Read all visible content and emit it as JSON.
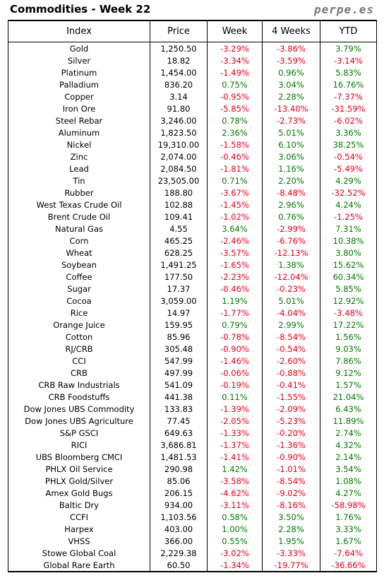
{
  "header": {
    "title": "Commodities - Week 22",
    "brand": "perpe.es"
  },
  "columns": [
    "Index",
    "Price",
    "Week",
    "4 Weeks",
    "YTD"
  ],
  "colors": {
    "positive": "#007a00",
    "negative": "#e0001b"
  },
  "rows": [
    [
      "Gold",
      "1,250.50",
      "-3.29%",
      "-3.86%",
      "3.79%"
    ],
    [
      "Silver",
      "18.82",
      "-3.34%",
      "-3.59%",
      "-3.14%"
    ],
    [
      "Platinum",
      "1,454.00",
      "-1.49%",
      "0.96%",
      "5.83%"
    ],
    [
      "Palladium",
      "836.20",
      "0.75%",
      "3.04%",
      "16.76%"
    ],
    [
      "Copper",
      "3.14",
      "-0.95%",
      "2.28%",
      "-7.37%"
    ],
    [
      "Iron Ore",
      "91.80",
      "-5.85%",
      "-13.40%",
      "-31.59%"
    ],
    [
      "Steel Rebar",
      "3,246.00",
      "0.78%",
      "-2.73%",
      "-6.02%"
    ],
    [
      "Aluminum",
      "1,823.50",
      "2.36%",
      "5.01%",
      "3.36%"
    ],
    [
      "Nickel",
      "19,310.00",
      "-1.58%",
      "6.10%",
      "38.25%"
    ],
    [
      "Zinc",
      "2,074.00",
      "-0.46%",
      "3.06%",
      "-0.54%"
    ],
    [
      "Lead",
      "2,084.50",
      "-1.81%",
      "1.16%",
      "-5.49%"
    ],
    [
      "Tin",
      "23,505.00",
      "0.71%",
      "2.20%",
      "4.29%"
    ],
    [
      "Rubber",
      "188.80",
      "-3.67%",
      "-8.48%",
      "-32.52%"
    ],
    [
      "West Texas Crude Oil",
      "102.88",
      "-1.45%",
      "2.96%",
      "4.24%"
    ],
    [
      "Brent Crude Oil",
      "109.41",
      "-1.02%",
      "0.76%",
      "-1.25%"
    ],
    [
      "Natural Gas",
      "4.55",
      "3.64%",
      "-2.99%",
      "7.31%"
    ],
    [
      "Corn",
      "465.25",
      "-2.46%",
      "-6.76%",
      "10.38%"
    ],
    [
      "Wheat",
      "628.25",
      "-3.57%",
      "-12.13%",
      "3.80%"
    ],
    [
      "Soybean",
      "1,491.25",
      "-1.65%",
      "1.38%",
      "15.62%"
    ],
    [
      "Coffee",
      "177.50",
      "-2.23%",
      "-12.04%",
      "60.34%"
    ],
    [
      "Sugar",
      "17.37",
      "-0.46%",
      "-0.23%",
      "5.85%"
    ],
    [
      "Cocoa",
      "3,059.00",
      "1.19%",
      "5.01%",
      "12.92%"
    ],
    [
      "Rice",
      "14.97",
      "-1.77%",
      "-4.04%",
      "-3.48%"
    ],
    [
      "Orange Juice",
      "159.95",
      "0.79%",
      "2.99%",
      "17.22%"
    ],
    [
      "Cotton",
      "85.96",
      "-0.78%",
      "-8.54%",
      "1.56%"
    ],
    [
      "RJ/CRB",
      "305.48",
      "-0.90%",
      "-0.54%",
      "9.03%"
    ],
    [
      "CCI",
      "547.99",
      "-1.46%",
      "-2.60%",
      "7.86%"
    ],
    [
      "CRB",
      "497.99",
      "-0.06%",
      "-0.88%",
      "9.12%"
    ],
    [
      "CRB Raw Industrials",
      "541.09",
      "-0.19%",
      "-0.41%",
      "1.57%"
    ],
    [
      "CRB Foodstuffs",
      "441.38",
      "0.11%",
      "-1.55%",
      "21.04%"
    ],
    [
      "Dow Jones UBS Commodity",
      "133.83",
      "-1.39%",
      "-2.09%",
      "6.43%"
    ],
    [
      "Dow Jones UBS Agriculture",
      "77.45",
      "-2.05%",
      "-5.23%",
      "11.89%"
    ],
    [
      "S&P GSCI",
      "649.63",
      "-1.33%",
      "-0.20%",
      "2.74%"
    ],
    [
      "RICI",
      "3,686.81",
      "-1.37%",
      "-1.36%",
      "4.32%"
    ],
    [
      "UBS Bloomberg CMCI",
      "1,481.53",
      "-1.41%",
      "-0.90%",
      "2.14%"
    ],
    [
      "PHLX Oil Service",
      "290.98",
      "1.42%",
      "-1.01%",
      "3.54%"
    ],
    [
      "PHLX Gold/Silver",
      "85.06",
      "-3.58%",
      "-8.54%",
      "1.08%"
    ],
    [
      "Amex Gold Bugs",
      "206.15",
      "-4.62%",
      "-9.02%",
      "4.27%"
    ],
    [
      "Baltic Dry",
      "934.00",
      "-3.11%",
      "-8.16%",
      "-58.98%"
    ],
    [
      "CCFI",
      "1,103.56",
      "0.58%",
      "3.50%",
      "1.76%"
    ],
    [
      "Harpex",
      "403.00",
      "1.00%",
      "2.28%",
      "3.33%"
    ],
    [
      "VHSS",
      "366.00",
      "0.55%",
      "1.95%",
      "1.67%"
    ],
    [
      "Stowe Global Coal",
      "2,229.38",
      "-3.02%",
      "-3.33%",
      "-7.64%"
    ],
    [
      "Global Rare Earth",
      "60.50",
      "-1.34%",
      "-19.77%",
      "-36.66%"
    ]
  ]
}
